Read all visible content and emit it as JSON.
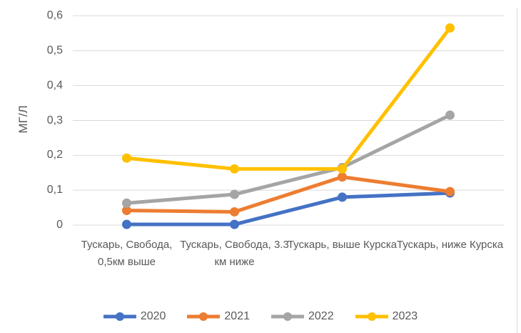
{
  "chart": {
    "background": "#ffffff",
    "grid_color": "#d9d9d9",
    "text_color": "#595959",
    "y_ticks": [
      "0",
      "0,1",
      "0,2",
      "0,3",
      "0,4",
      "0,5",
      "0,6"
    ]
  },
  "chart_data": {
    "type": "line",
    "title": "",
    "xlabel": "",
    "ylabel": "МГ/Л",
    "ylim": [
      0,
      0.6
    ],
    "ytick_step": 0.1,
    "grid": true,
    "legend_position": "bottom",
    "categories": [
      "Тускарь, Свобода, 0,5км выше",
      "Тускарь, Свобода, 3.3 км ниже",
      "Тускарь, выше Курска",
      "Тускарь, ниже Курска"
    ],
    "series": [
      {
        "name": "2020",
        "color": "#4472C4",
        "values": [
          0.002,
          0.002,
          0.08,
          0.092
        ]
      },
      {
        "name": "2021",
        "color": "#ED7D31",
        "values": [
          0.042,
          0.038,
          0.138,
          0.096
        ]
      },
      {
        "name": "2022",
        "color": "#A5A5A5",
        "values": [
          0.063,
          0.088,
          0.165,
          0.315
        ]
      },
      {
        "name": "2023",
        "color": "#FFC000",
        "values": [
          0.192,
          0.161,
          0.161,
          0.565
        ]
      }
    ]
  }
}
